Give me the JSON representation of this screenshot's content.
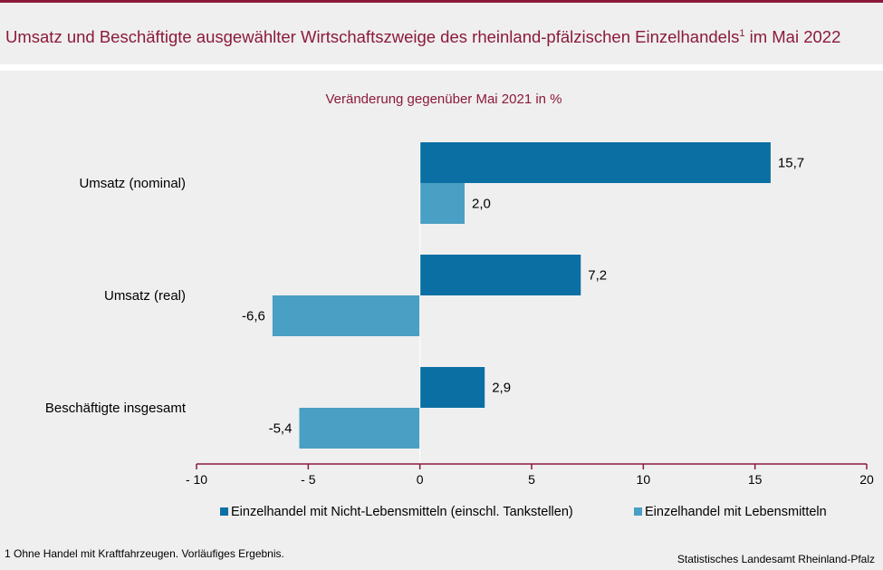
{
  "header": {
    "title": "Umsatz und Beschäftigte ausgewählter Wirtschaftszweige des rheinland-pfälzischen Einzelhandels",
    "title_sup": "1",
    "title_tail": " im Mai 2022"
  },
  "chart_data": {
    "type": "bar",
    "orientation": "horizontal",
    "subtitle": "Veränderung gegenüber Mai 2021 in %",
    "categories": [
      "Umsatz (nominal)",
      "Umsatz (real)",
      "Beschäftigte insgesamt"
    ],
    "series": [
      {
        "name": "Einzelhandel mit Nicht-Lebensmitteln (einschl. Tankstellen)",
        "values": [
          15.7,
          7.2,
          2.9
        ],
        "labels": [
          "15,7",
          "7,2",
          "2,9"
        ],
        "color": "#0b6fa4"
      },
      {
        "name": "Einzelhandel mit Lebensmitteln",
        "values": [
          2.0,
          -6.6,
          -5.4
        ],
        "labels": [
          "2,0",
          "-6,6",
          "-5,4"
        ],
        "color": "#4a9fc4"
      }
    ],
    "xlim": [
      -10,
      20
    ],
    "xticks": [
      -10,
      -5,
      0,
      5,
      10,
      15,
      20
    ],
    "xtick_labels": [
      "- 10",
      "- 5",
      "0",
      "5",
      "10",
      "15",
      "20"
    ],
    "legend_position": "bottom",
    "grid": false
  },
  "footer": {
    "footnote": "1 Ohne Handel mit Kraftfahrzeugen. Vorläufiges Ergebnis.",
    "source": "Statistisches Landesamt Rheinland-Pfalz"
  }
}
